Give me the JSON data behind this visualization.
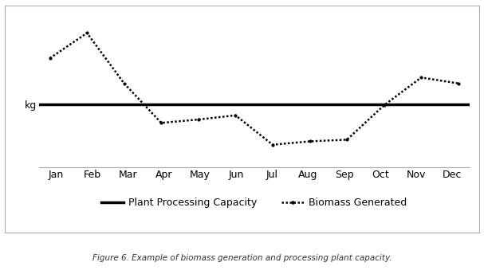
{
  "months": [
    "Jan",
    "Feb",
    "Mar",
    "Apr",
    "May",
    "Jun",
    "Jul",
    "Aug",
    "Sep",
    "Oct",
    "Nov",
    "Dec"
  ],
  "plant_capacity": 0.0,
  "biomass_values": [
    0.55,
    0.85,
    0.25,
    -0.22,
    -0.18,
    -0.13,
    -0.48,
    -0.44,
    -0.42,
    -0.01,
    0.32,
    0.25
  ],
  "ylabel": "kg",
  "caption": "Figure 6. Example of biomass generation and processing plant capacity.",
  "legend_capacity_label": "Plant Processing Capacity",
  "legend_biomass_label": "Biomass Generated",
  "line_color": "#000000",
  "dot_color": "#000000",
  "background_color": "#ffffff",
  "ylim": [
    -0.75,
    1.05
  ],
  "figsize": [
    6.07,
    3.39
  ],
  "dpi": 100,
  "tick_fontsize": 9,
  "legend_fontsize": 9,
  "caption_fontsize": 7.5
}
